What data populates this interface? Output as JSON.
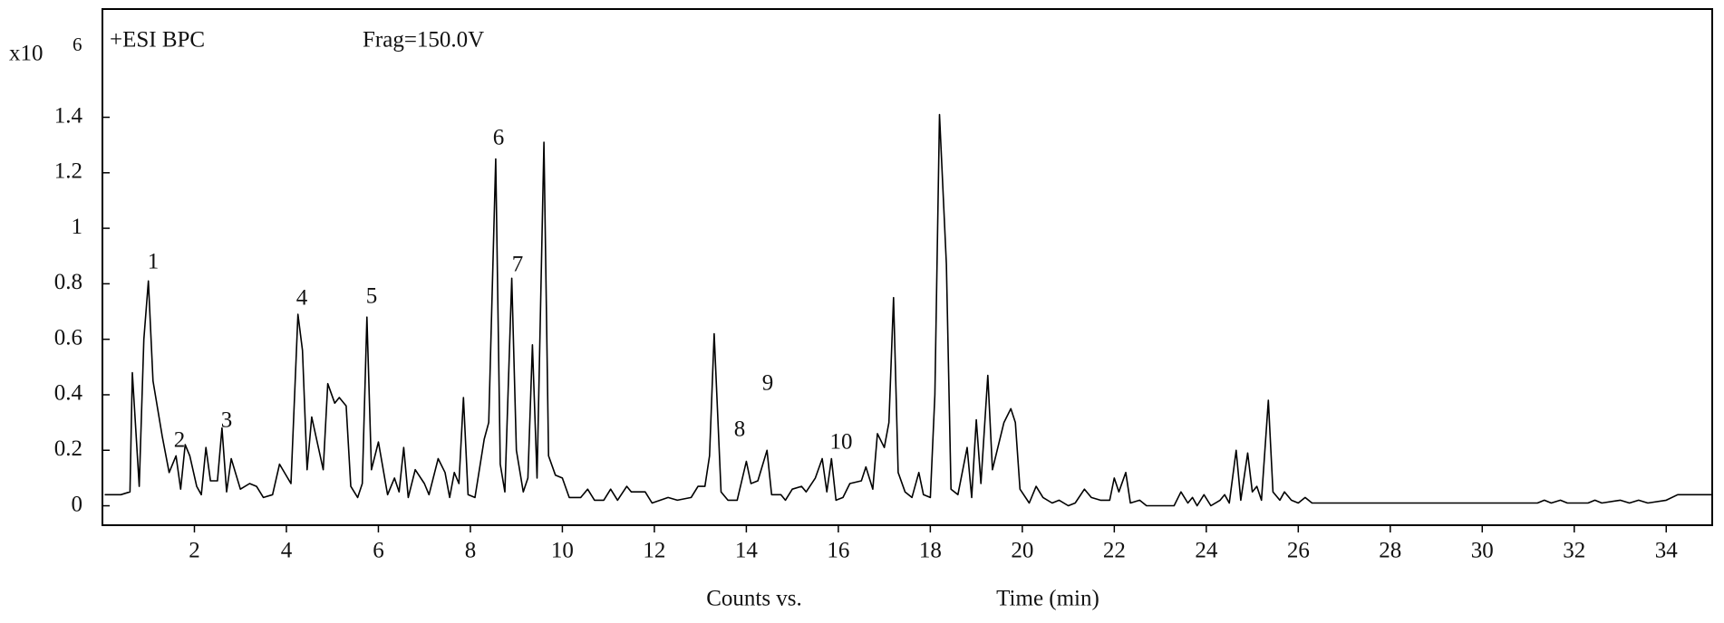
{
  "chart_data": {
    "type": "line",
    "method_label": "+ESI BPC",
    "fragmentor_label": "Frag=150.0V",
    "y_scale_label": "x10",
    "y_scale_exponent": "6",
    "xlabel_left": "Counts vs.",
    "xlabel_right": "Time (min)",
    "color": "#000000",
    "xlim": [
      0,
      35
    ],
    "ylim": [
      -0.07,
      1.79
    ],
    "xticks": [
      2,
      4,
      6,
      8,
      10,
      12,
      14,
      16,
      18,
      20,
      22,
      24,
      26,
      28,
      30,
      32,
      34
    ],
    "yticks": [
      0,
      0.2,
      0.4,
      0.6,
      0.8,
      1,
      1.2,
      1.4
    ],
    "annotations": [
      "1",
      "2",
      "3",
      "4",
      "5",
      "6",
      "7",
      "8",
      "9",
      "10"
    ],
    "x": [
      0.05,
      0.4,
      0.6,
      0.65,
      0.8,
      0.9,
      1.0,
      1.1,
      1.3,
      1.45,
      1.6,
      1.7,
      1.8,
      1.9,
      2.05,
      2.15,
      2.25,
      2.35,
      2.5,
      2.6,
      2.7,
      2.8,
      3.0,
      3.2,
      3.35,
      3.5,
      3.7,
      3.85,
      4.1,
      4.25,
      4.35,
      4.45,
      4.55,
      4.8,
      4.9,
      5.05,
      5.15,
      5.3,
      5.4,
      5.55,
      5.65,
      5.75,
      5.85,
      6.0,
      6.2,
      6.35,
      6.45,
      6.55,
      6.65,
      6.8,
      7.0,
      7.1,
      7.3,
      7.45,
      7.55,
      7.65,
      7.75,
      7.85,
      7.95,
      8.1,
      8.3,
      8.4,
      8.55,
      8.65,
      8.75,
      8.9,
      9.0,
      9.15,
      9.25,
      9.35,
      9.45,
      9.6,
      9.7,
      9.85,
      10.0,
      10.15,
      10.4,
      10.55,
      10.7,
      10.9,
      11.05,
      11.2,
      11.4,
      11.5,
      11.8,
      11.95,
      12.3,
      12.5,
      12.8,
      12.95,
      13.1,
      13.2,
      13.3,
      13.45,
      13.6,
      13.8,
      14.0,
      14.1,
      14.25,
      14.45,
      14.55,
      14.75,
      14.85,
      15.0,
      15.2,
      15.3,
      15.5,
      15.65,
      15.75,
      15.85,
      15.95,
      16.1,
      16.25,
      16.5,
      16.6,
      16.75,
      16.85,
      17.0,
      17.1,
      17.2,
      17.3,
      17.45,
      17.6,
      17.75,
      17.85,
      18.0,
      18.1,
      18.2,
      18.35,
      18.45,
      18.6,
      18.8,
      18.9,
      19.0,
      19.1,
      19.25,
      19.35,
      19.6,
      19.75,
      19.85,
      19.95,
      20.15,
      20.3,
      20.45,
      20.65,
      20.8,
      21.0,
      21.15,
      21.35,
      21.5,
      21.7,
      21.9,
      22.0,
      22.1,
      22.25,
      22.35,
      22.55,
      22.7,
      23.3,
      23.45,
      23.6,
      23.7,
      23.8,
      23.95,
      24.1,
      24.3,
      24.4,
      24.5,
      24.65,
      24.75,
      24.9,
      25.0,
      25.1,
      25.2,
      25.35,
      25.45,
      25.6,
      25.7,
      25.85,
      26.0,
      26.15,
      26.3,
      31.2,
      31.35,
      31.5,
      31.7,
      31.85,
      32.3,
      32.45,
      32.6,
      33.0,
      33.2,
      33.4,
      33.6,
      34.0,
      34.25,
      35.0
    ],
    "values": [
      0.04,
      0.04,
      0.05,
      0.48,
      0.07,
      0.6,
      0.81,
      0.45,
      0.25,
      0.12,
      0.18,
      0.06,
      0.22,
      0.18,
      0.07,
      0.04,
      0.21,
      0.09,
      0.09,
      0.28,
      0.05,
      0.17,
      0.06,
      0.08,
      0.07,
      0.03,
      0.04,
      0.15,
      0.08,
      0.69,
      0.56,
      0.13,
      0.32,
      0.13,
      0.44,
      0.37,
      0.39,
      0.36,
      0.07,
      0.03,
      0.08,
      0.68,
      0.13,
      0.23,
      0.04,
      0.1,
      0.05,
      0.21,
      0.03,
      0.13,
      0.08,
      0.04,
      0.17,
      0.12,
      0.03,
      0.12,
      0.08,
      0.39,
      0.04,
      0.03,
      0.24,
      0.3,
      1.25,
      0.15,
      0.05,
      0.82,
      0.2,
      0.05,
      0.1,
      0.58,
      0.1,
      1.31,
      0.18,
      0.11,
      0.1,
      0.03,
      0.03,
      0.06,
      0.02,
      0.02,
      0.06,
      0.02,
      0.07,
      0.05,
      0.05,
      0.01,
      0.03,
      0.02,
      0.03,
      0.07,
      0.07,
      0.18,
      0.62,
      0.05,
      0.02,
      0.02,
      0.16,
      0.08,
      0.09,
      0.2,
      0.04,
      0.04,
      0.02,
      0.06,
      0.07,
      0.05,
      0.1,
      0.17,
      0.05,
      0.17,
      0.02,
      0.03,
      0.08,
      0.09,
      0.14,
      0.06,
      0.26,
      0.21,
      0.3,
      0.75,
      0.12,
      0.05,
      0.03,
      0.12,
      0.04,
      0.03,
      0.4,
      1.41,
      0.87,
      0.06,
      0.04,
      0.21,
      0.03,
      0.31,
      0.08,
      0.47,
      0.13,
      0.3,
      0.35,
      0.3,
      0.06,
      0.01,
      0.07,
      0.03,
      0.01,
      0.02,
      0.0,
      0.01,
      0.06,
      0.03,
      0.02,
      0.02,
      0.1,
      0.05,
      0.12,
      0.01,
      0.02,
      0.0,
      0.0,
      0.05,
      0.01,
      0.03,
      0.0,
      0.04,
      0.0,
      0.02,
      0.04,
      0.01,
      0.2,
      0.02,
      0.19,
      0.05,
      0.07,
      0.02,
      0.38,
      0.05,
      0.02,
      0.05,
      0.02,
      0.01,
      0.03,
      0.01,
      0.01,
      0.02,
      0.01,
      0.02,
      0.01,
      0.01,
      0.02,
      0.01,
      0.02,
      0.01,
      0.02,
      0.01,
      0.02,
      0.04,
      0.04
    ]
  }
}
